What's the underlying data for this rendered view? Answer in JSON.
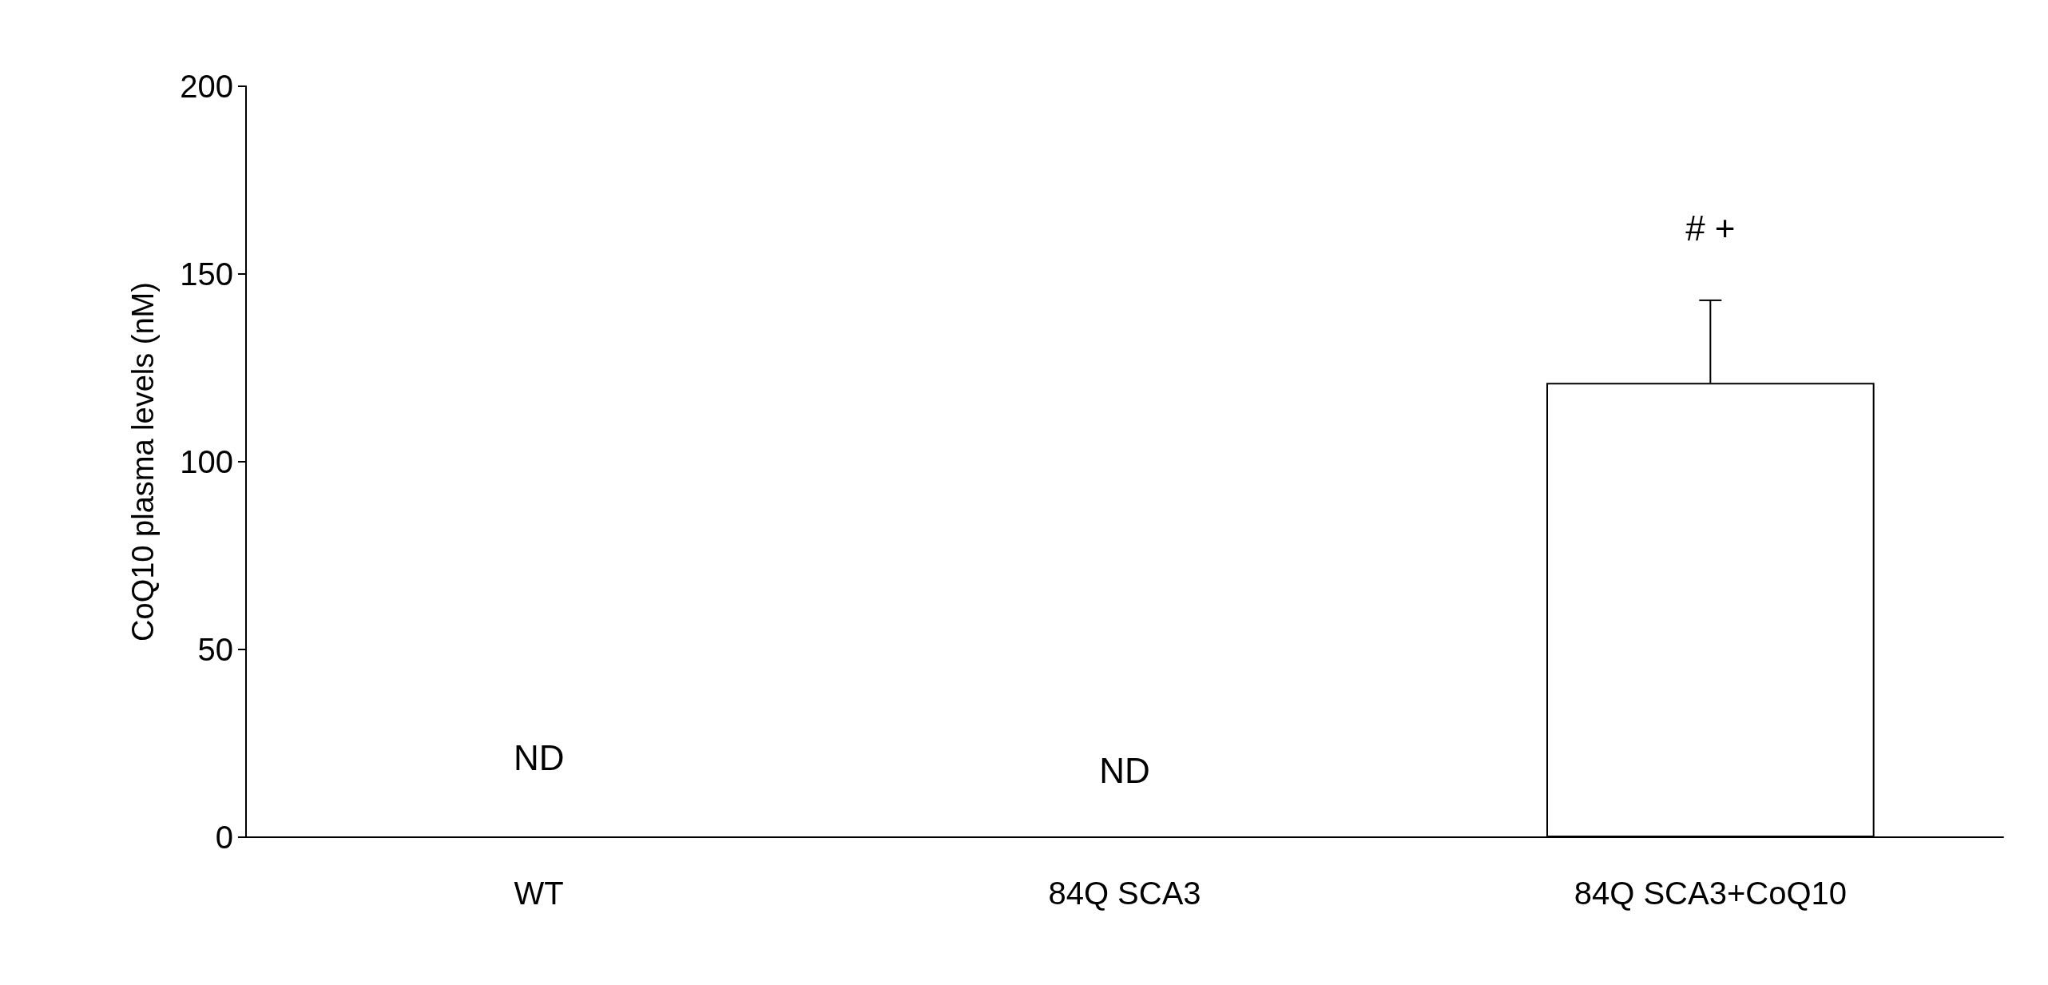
{
  "chart_data": {
    "type": "bar",
    "ylabel": "CoQ10 plasma levels (nM)",
    "categories": [
      "WT",
      "84Q SCA3",
      "84Q SCA3+CoQ10"
    ],
    "values": [
      null,
      null,
      121
    ],
    "color": "#ffffff",
    "errors": [
      null,
      null,
      [
        121,
        143
      ]
    ],
    "ylim": [
      0,
      200
    ],
    "yticks": [
      0,
      50,
      100,
      150,
      200
    ],
    "grid": false,
    "annotations": [
      "ND",
      "ND",
      "# +"
    ]
  }
}
